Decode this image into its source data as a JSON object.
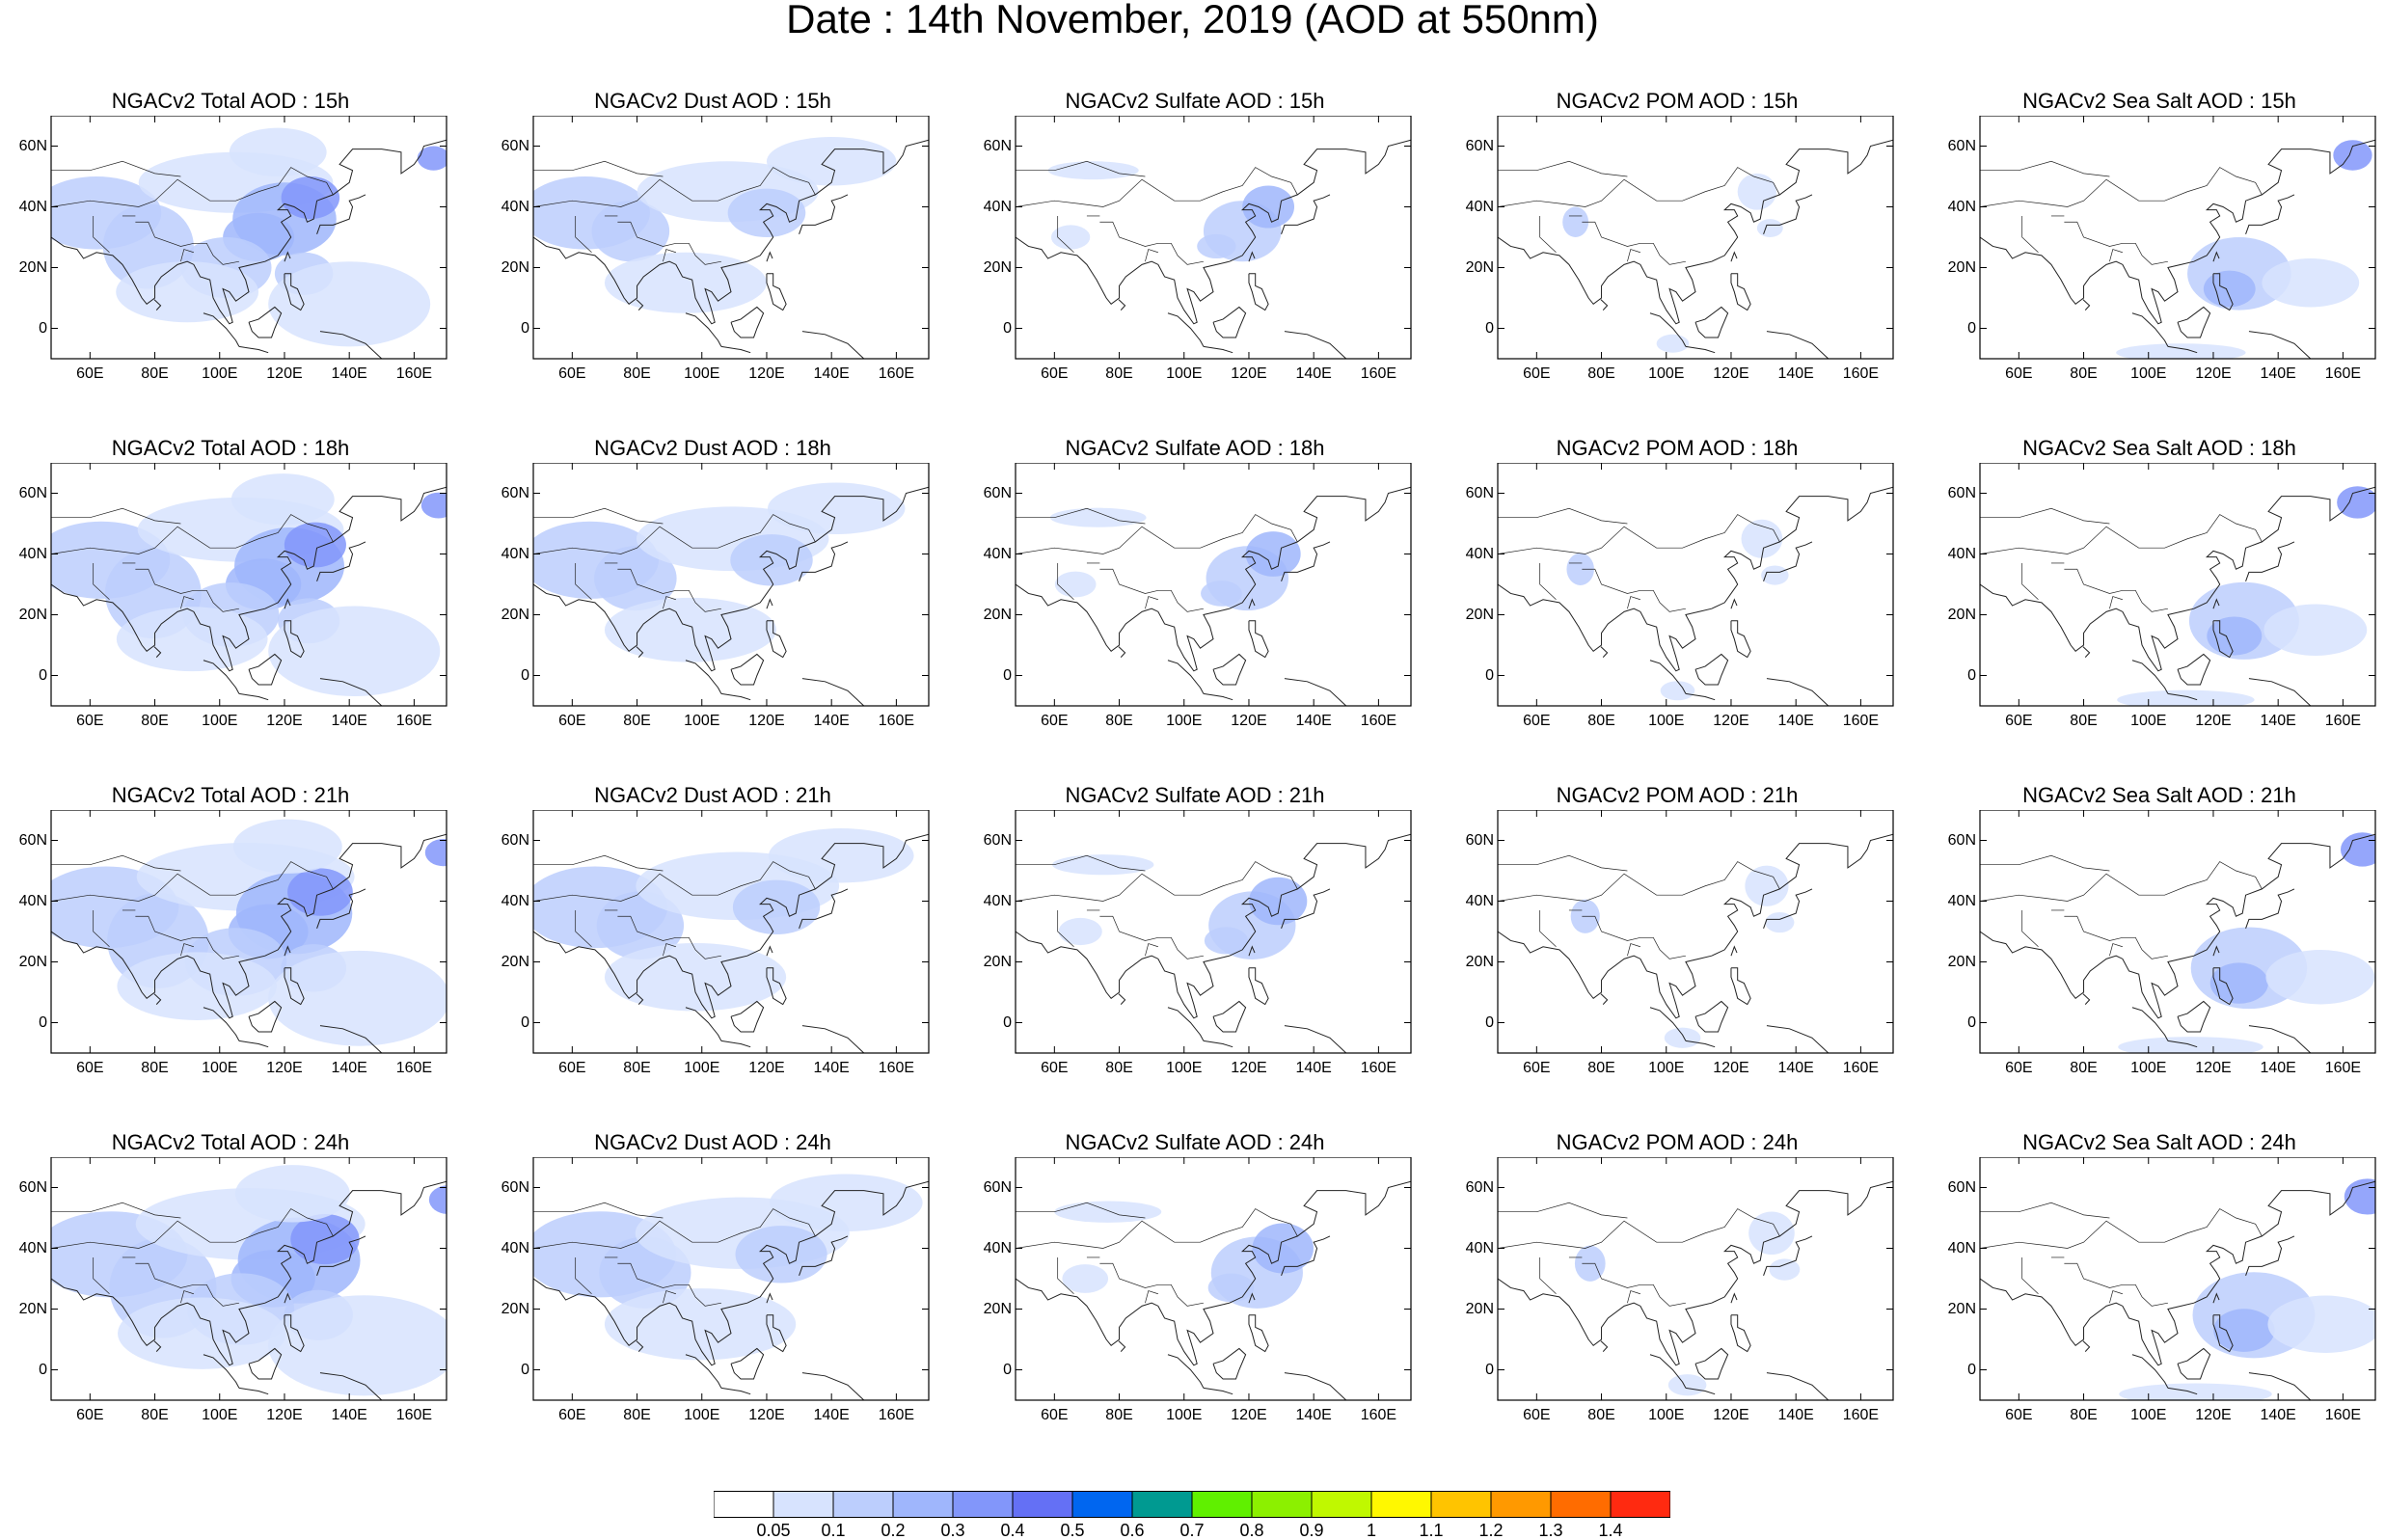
{
  "figure_title": "Date : 14th November, 2019 (AOD at 550nm)",
  "map_extent": {
    "lon": [
      48,
      170
    ],
    "lat": [
      -10,
      70
    ]
  },
  "x_tick_labels": [
    {
      "v": 60,
      "t": "60E"
    },
    {
      "v": 80,
      "t": "80E"
    },
    {
      "v": 100,
      "t": "100E"
    },
    {
      "v": 120,
      "t": "120E"
    },
    {
      "v": 140,
      "t": "140E"
    },
    {
      "v": 160,
      "t": "160E"
    }
  ],
  "y_tick_labels": [
    {
      "v": 60,
      "t": "60N"
    },
    {
      "v": 40,
      "t": "40N"
    },
    {
      "v": 20,
      "t": "20N"
    },
    {
      "v": 0,
      "t": "0"
    }
  ],
  "panel_titles": [
    [
      "NGACv2 Total AOD : 15h",
      "NGACv2 Dust AOD : 15h",
      "NGACv2 Sulfate AOD : 15h",
      "NGACv2 POM AOD : 15h",
      "NGACv2 Sea Salt AOD : 15h"
    ],
    [
      "NGACv2 Total AOD : 18h",
      "NGACv2 Dust AOD : 18h",
      "NGACv2 Sulfate AOD : 18h",
      "NGACv2 POM AOD : 18h",
      "NGACv2 Sea Salt AOD : 18h"
    ],
    [
      "NGACv2 Total AOD : 21h",
      "NGACv2 Dust AOD : 21h",
      "NGACv2 Sulfate AOD : 21h",
      "NGACv2 POM AOD : 21h",
      "NGACv2 Sea Salt AOD : 21h"
    ],
    [
      "NGACv2 Total AOD : 24h",
      "NGACv2 Dust AOD : 24h",
      "NGACv2 Sulfate AOD : 24h",
      "NGACv2 POM AOD : 24h",
      "NGACv2 Sea Salt  AOD : 24h"
    ]
  ],
  "colorbar": {
    "labels": [
      "0.05",
      "0.1",
      "0.2",
      "0.3",
      "0.4",
      "0.5",
      "0.6",
      "0.7",
      "0.8",
      "0.9",
      "1",
      "1.1",
      "1.2",
      "1.3",
      "1.4"
    ],
    "colors": [
      "#ffffff",
      "#d7e3fe",
      "#bccefd",
      "#9fb6fc",
      "#8296fa",
      "#6470f5",
      "#0066f0",
      "#009a91",
      "#60f000",
      "#8cf000",
      "#c0f800",
      "#fff800",
      "#ffc400",
      "#ff9900",
      "#ff6c00",
      "#ff2a10"
    ]
  }
}
